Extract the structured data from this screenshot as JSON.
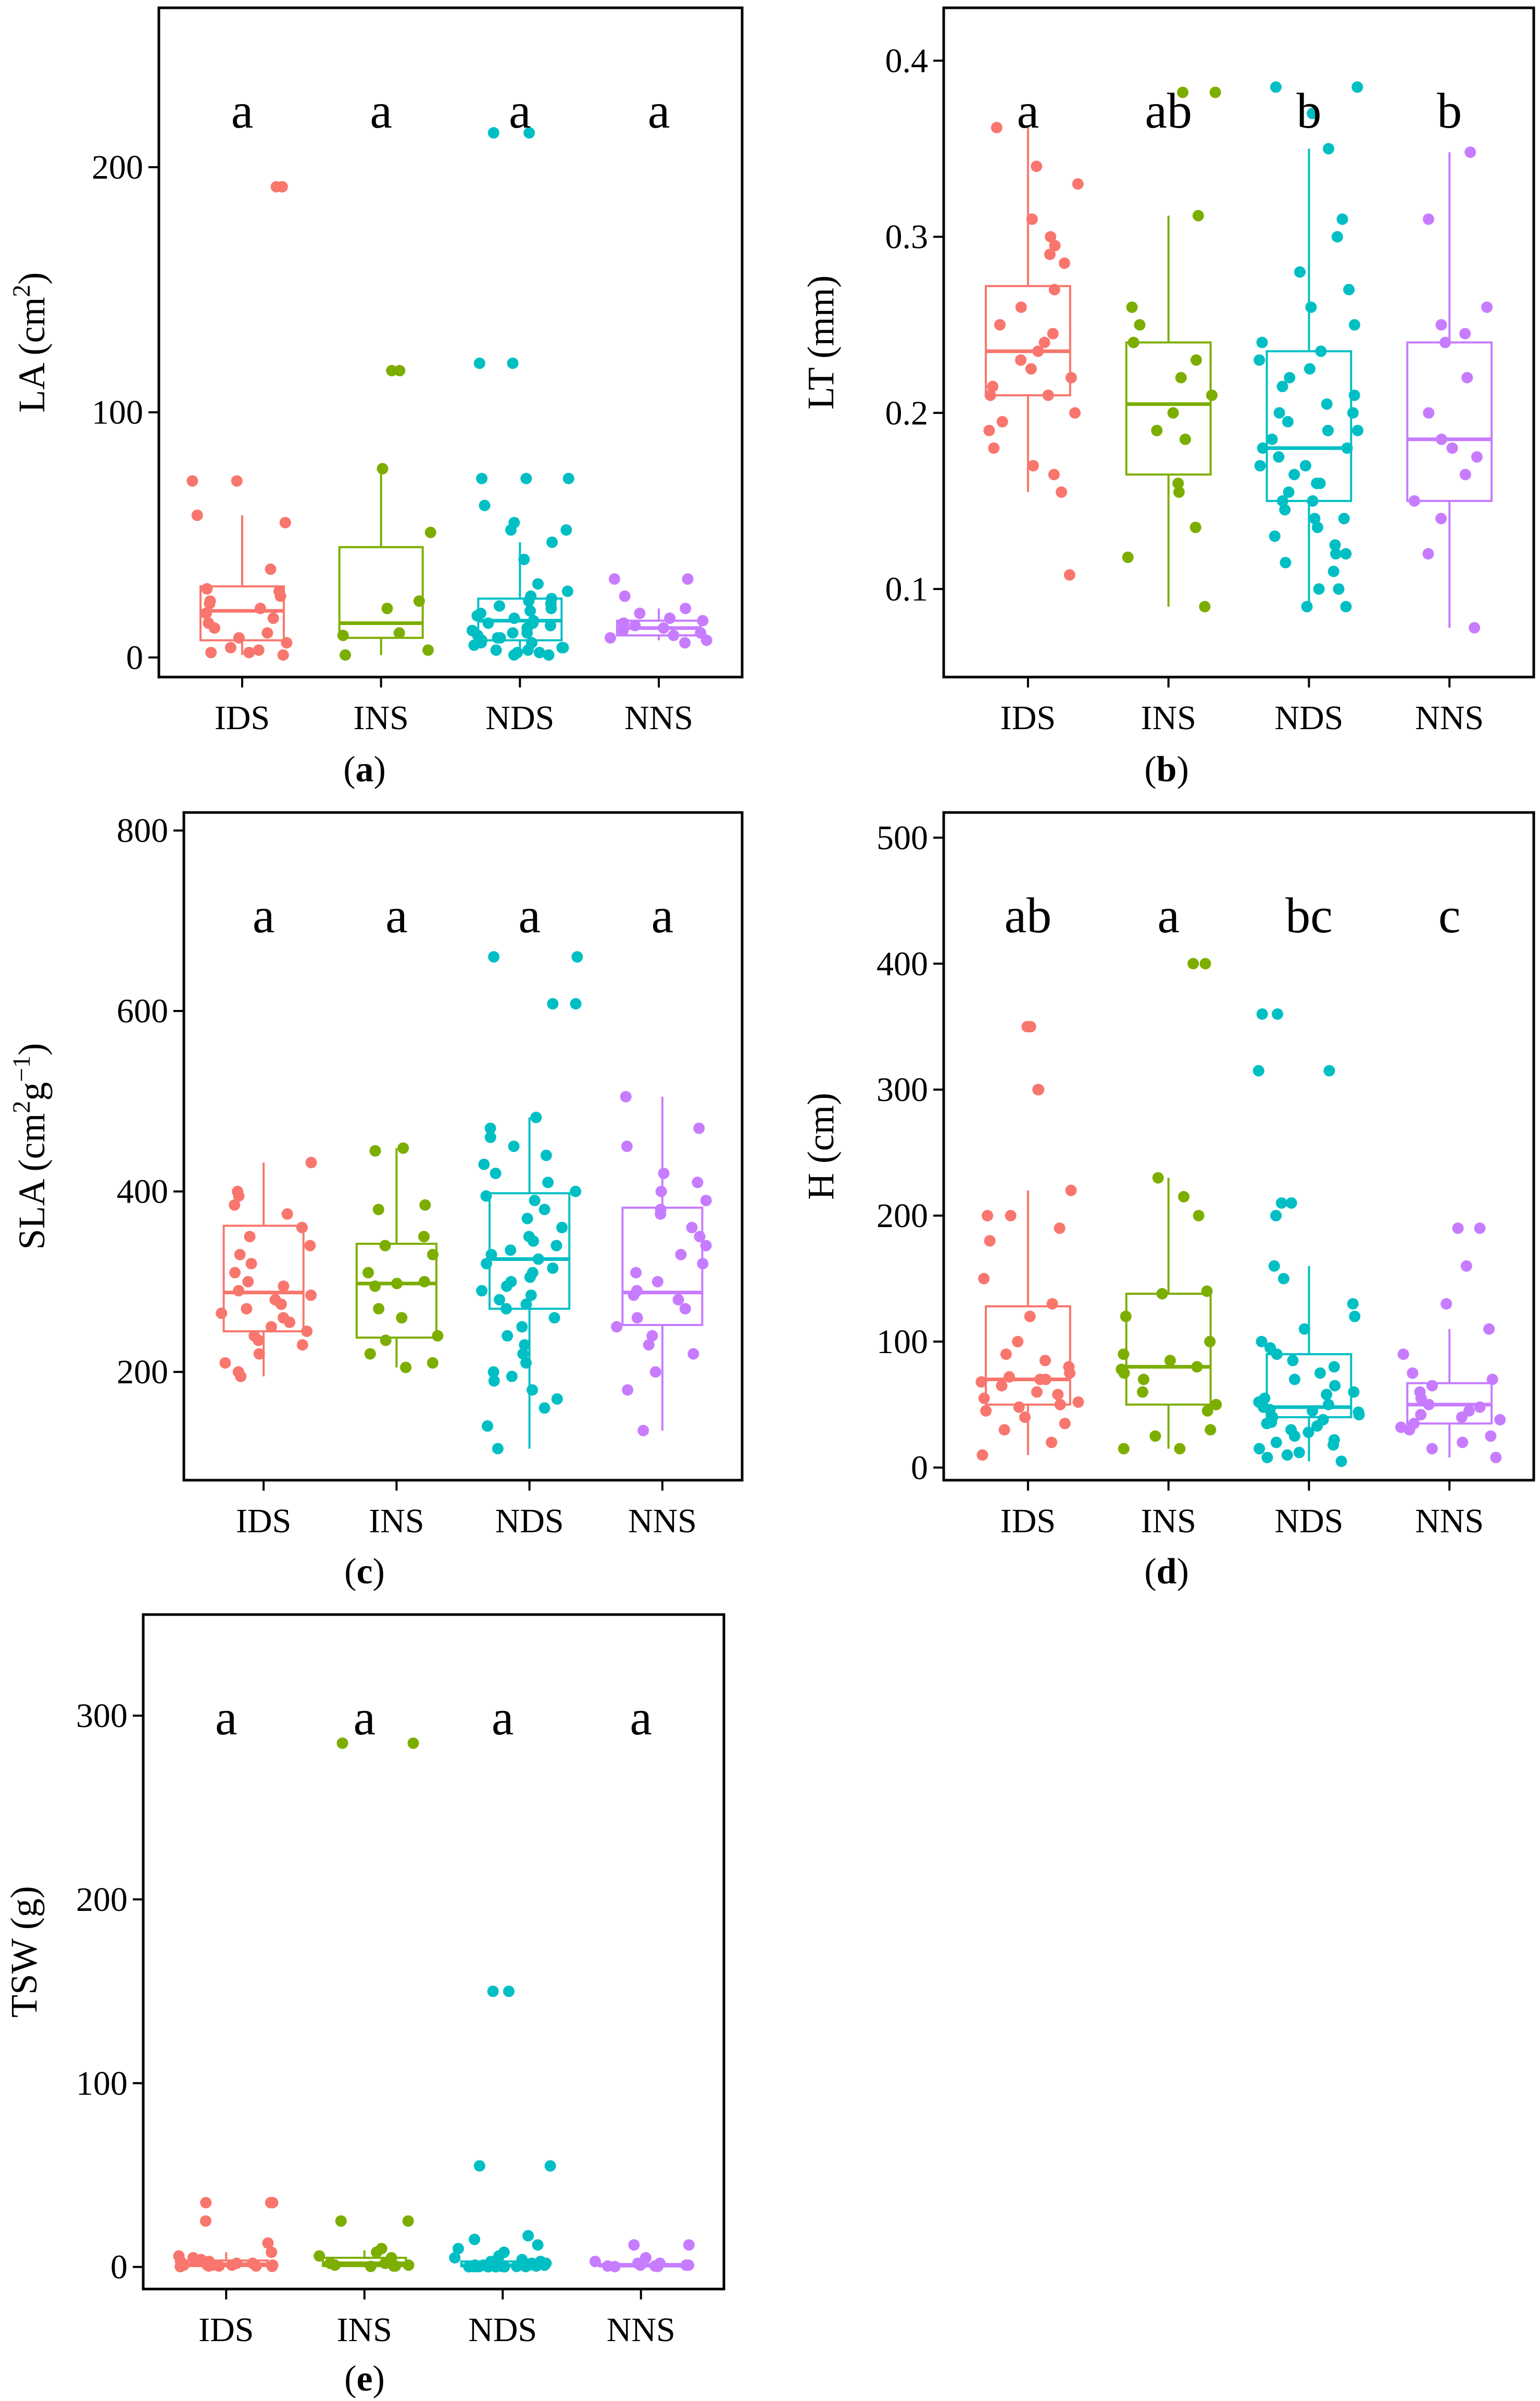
{
  "colors": {
    "IDS": "#F8766D",
    "INS": "#7CAE00",
    "NDS": "#00BFC4",
    "NNS": "#C77CFF"
  },
  "chart_data": [
    {
      "type": "box",
      "panel_label": "a",
      "ylabel": {
        "base": "LA (cm",
        "sup": "2",
        "end": ")"
      },
      "categories": [
        "IDS",
        "INS",
        "NDS",
        "NNS"
      ],
      "ylim": [
        -8,
        265
      ],
      "yticks": [
        0,
        100,
        200
      ],
      "significance": [
        "a",
        "a",
        "a",
        "a"
      ],
      "boxes": [
        {
          "q1": 7,
          "median": 19,
          "q3": 29,
          "min": 1,
          "max": 58
        },
        {
          "q1": 8,
          "median": 14,
          "q3": 45,
          "min": 1,
          "max": 77
        },
        {
          "q1": 7,
          "median": 15,
          "q3": 24,
          "min": 1,
          "max": 47
        },
        {
          "q1": 9,
          "median": 12,
          "q3": 15,
          "min": 7,
          "max": 20
        }
      ],
      "points": [
        [
          192,
          192,
          72,
          72,
          58,
          55,
          36,
          28,
          27,
          25,
          23,
          22,
          20,
          18,
          16,
          14,
          12,
          10,
          8,
          6,
          4,
          3,
          2,
          2,
          1
        ],
        [
          117,
          117,
          77,
          51,
          23,
          20,
          10,
          9,
          3,
          1
        ],
        [
          214,
          214,
          120,
          120,
          73,
          73,
          73,
          62,
          55,
          52,
          52,
          47,
          40,
          30,
          27,
          25,
          24,
          23,
          22,
          21,
          20,
          19,
          18,
          17,
          16,
          15,
          14,
          14,
          13,
          12,
          11,
          10,
          10,
          9,
          8,
          8,
          7,
          6,
          6,
          5,
          4,
          4,
          3,
          3,
          2,
          2,
          1,
          1
        ],
        [
          32,
          32,
          25,
          20,
          18,
          16,
          15,
          14,
          13,
          12,
          11,
          10,
          9,
          8,
          7,
          6
        ]
      ]
    },
    {
      "type": "box",
      "panel_label": "b",
      "ylabel": {
        "base": "LT (mm)",
        "sup": "",
        "end": ""
      },
      "categories": [
        "IDS",
        "INS",
        "NDS",
        "NNS"
      ],
      "ylim": [
        0.05,
        0.43
      ],
      "yticks": [
        0.1,
        0.2,
        0.3,
        0.4
      ],
      "significance": [
        "a",
        "ab",
        "b",
        "b"
      ],
      "boxes": [
        {
          "q1": 0.21,
          "median": 0.235,
          "q3": 0.272,
          "min": 0.155,
          "max": 0.362
        },
        {
          "q1": 0.165,
          "median": 0.205,
          "q3": 0.24,
          "min": 0.09,
          "max": 0.312
        },
        {
          "q1": 0.15,
          "median": 0.18,
          "q3": 0.235,
          "min": 0.09,
          "max": 0.35
        },
        {
          "q1": 0.15,
          "median": 0.185,
          "q3": 0.24,
          "min": 0.078,
          "max": 0.348
        }
      ],
      "points": [
        [
          0.362,
          0.34,
          0.33,
          0.31,
          0.3,
          0.295,
          0.29,
          0.285,
          0.27,
          0.26,
          0.25,
          0.245,
          0.24,
          0.235,
          0.23,
          0.225,
          0.22,
          0.215,
          0.21,
          0.21,
          0.2,
          0.195,
          0.19,
          0.18,
          0.17,
          0.165,
          0.155,
          0.108
        ],
        [
          0.382,
          0.382,
          0.312,
          0.26,
          0.25,
          0.24,
          0.23,
          0.22,
          0.21,
          0.2,
          0.19,
          0.185,
          0.16,
          0.155,
          0.135,
          0.118,
          0.09
        ],
        [
          0.385,
          0.385,
          0.37,
          0.35,
          0.31,
          0.3,
          0.28,
          0.27,
          0.26,
          0.25,
          0.24,
          0.235,
          0.23,
          0.225,
          0.22,
          0.215,
          0.21,
          0.205,
          0.2,
          0.2,
          0.195,
          0.19,
          0.19,
          0.185,
          0.18,
          0.18,
          0.175,
          0.17,
          0.17,
          0.165,
          0.16,
          0.16,
          0.155,
          0.15,
          0.15,
          0.145,
          0.14,
          0.14,
          0.135,
          0.13,
          0.125,
          0.12,
          0.12,
          0.115,
          0.11,
          0.1,
          0.1,
          0.09,
          0.09
        ],
        [
          0.348,
          0.31,
          0.26,
          0.25,
          0.245,
          0.24,
          0.22,
          0.2,
          0.185,
          0.18,
          0.175,
          0.165,
          0.15,
          0.14,
          0.12,
          0.078
        ]
      ]
    },
    {
      "type": "box",
      "panel_label": "c",
      "ylabel": {
        "base": "SLA (cm",
        "sup": "2",
        "mid": "g",
        "sup2": "−1",
        "end": ")"
      },
      "categories": [
        "IDS",
        "INS",
        "NDS",
        "NNS"
      ],
      "ylim": [
        80,
        820
      ],
      "yticks": [
        200,
        400,
        600,
        800
      ],
      "significance": [
        "a",
        "a",
        "a",
        "a"
      ],
      "boxes": [
        {
          "q1": 245,
          "median": 288,
          "q3": 362,
          "min": 195,
          "max": 432
        },
        {
          "q1": 238,
          "median": 298,
          "q3": 342,
          "min": 205,
          "max": 448
        },
        {
          "q1": 270,
          "median": 325,
          "q3": 398,
          "min": 115,
          "max": 482
        },
        {
          "q1": 252,
          "median": 288,
          "q3": 382,
          "min": 135,
          "max": 505
        }
      ],
      "points": [
        [
          432,
          400,
          395,
          385,
          375,
          360,
          350,
          340,
          330,
          320,
          310,
          300,
          295,
          290,
          285,
          280,
          275,
          270,
          265,
          260,
          255,
          250,
          245,
          240,
          235,
          230,
          220,
          210,
          200,
          195
        ],
        [
          448,
          445,
          385,
          380,
          350,
          340,
          330,
          310,
          300,
          298,
          295,
          270,
          260,
          240,
          235,
          220,
          210,
          205
        ],
        [
          660,
          660,
          608,
          608,
          482,
          470,
          460,
          450,
          440,
          430,
          420,
          410,
          400,
          395,
          390,
          380,
          370,
          360,
          350,
          345,
          340,
          335,
          330,
          325,
          320,
          315,
          310,
          305,
          300,
          295,
          290,
          285,
          280,
          275,
          270,
          260,
          250,
          240,
          230,
          220,
          210,
          200,
          195,
          190,
          180,
          170,
          160,
          140,
          115
        ],
        [
          505,
          470,
          450,
          420,
          410,
          400,
          390,
          380,
          375,
          360,
          350,
          340,
          330,
          320,
          310,
          300,
          290,
          285,
          280,
          270,
          260,
          250,
          240,
          230,
          220,
          200,
          180,
          135
        ]
      ]
    },
    {
      "type": "box",
      "panel_label": "d",
      "ylabel": {
        "base": "H (cm)",
        "sup": "",
        "end": ""
      },
      "categories": [
        "IDS",
        "INS",
        "NDS",
        "NNS"
      ],
      "ylim": [
        -10,
        520
      ],
      "yticks": [
        0,
        100,
        200,
        300,
        400,
        500
      ],
      "significance": [
        "ab",
        "a",
        "bc",
        "c"
      ],
      "boxes": [
        {
          "q1": 50,
          "median": 70,
          "q3": 128,
          "min": 10,
          "max": 220
        },
        {
          "q1": 50,
          "median": 80,
          "q3": 138,
          "min": 15,
          "max": 230
        },
        {
          "q1": 40,
          "median": 48,
          "q3": 90,
          "min": 5,
          "max": 160
        },
        {
          "q1": 35,
          "median": 50,
          "q3": 67,
          "min": 8,
          "max": 110
        }
      ],
      "points": [
        [
          350,
          350,
          300,
          300,
          220,
          200,
          200,
          190,
          180,
          150,
          130,
          120,
          100,
          90,
          85,
          80,
          75,
          72,
          70,
          70,
          68,
          65,
          60,
          58,
          55,
          52,
          50,
          48,
          45,
          40,
          35,
          30,
          20,
          10
        ],
        [
          400,
          400,
          230,
          215,
          200,
          140,
          138,
          120,
          100,
          90,
          85,
          80,
          78,
          75,
          70,
          60,
          50,
          45,
          30,
          25,
          15,
          15
        ],
        [
          360,
          360,
          315,
          315,
          210,
          210,
          200,
          160,
          150,
          130,
          120,
          110,
          100,
          95,
          90,
          85,
          80,
          75,
          70,
          65,
          60,
          58,
          55,
          52,
          50,
          48,
          46,
          45,
          44,
          42,
          40,
          38,
          36,
          35,
          33,
          30,
          28,
          25,
          22,
          20,
          18,
          15,
          12,
          10,
          8,
          5
        ],
        [
          190,
          190,
          160,
          130,
          110,
          90,
          75,
          70,
          65,
          60,
          55,
          50,
          48,
          45,
          42,
          40,
          38,
          35,
          32,
          30,
          25,
          20,
          15,
          8
        ]
      ]
    },
    {
      "type": "box",
      "panel_label": "e",
      "ylabel": {
        "base": "TSW (g)",
        "sup": "",
        "end": ""
      },
      "categories": [
        "IDS",
        "INS",
        "NDS",
        "NNS"
      ],
      "ylim": [
        -12,
        355
      ],
      "yticks": [
        0,
        100,
        200,
        300
      ],
      "significance": [
        "a",
        "a",
        "a",
        "a"
      ],
      "boxes": [
        {
          "q1": 0.5,
          "median": 1.5,
          "q3": 3.5,
          "min": 0,
          "max": 8
        },
        {
          "q1": 0.5,
          "median": 2,
          "q3": 5,
          "min": 0,
          "max": 9
        },
        {
          "q1": 0.4,
          "median": 1,
          "q3": 3,
          "min": 0,
          "max": 8
        },
        {
          "q1": 0.3,
          "median": 0.8,
          "q3": 1.6,
          "min": 0,
          "max": 3
        }
      ],
      "points": [
        [
          35,
          35,
          35,
          25,
          13,
          8,
          6,
          5,
          4,
          3,
          3,
          2,
          2,
          2,
          1,
          1,
          1,
          1,
          1,
          0.5,
          0.5,
          0.5,
          0.3,
          0.2
        ],
        [
          285,
          285,
          25,
          25,
          10,
          8,
          6,
          5,
          3,
          2,
          2,
          1,
          1,
          0.5,
          0.5,
          0.3
        ],
        [
          150,
          150,
          55,
          55,
          17,
          15,
          12,
          10,
          8,
          6,
          5,
          4,
          3,
          3,
          2,
          2,
          2,
          1,
          1,
          1,
          1,
          1,
          0.5,
          0.5,
          0.5,
          0.5,
          0.3,
          0.3,
          0.3,
          0.2,
          0.2,
          0.2,
          0.1,
          0.1,
          0.1,
          0.1
        ],
        [
          12,
          12,
          5,
          3,
          2,
          2,
          1,
          1,
          1,
          0.5,
          0.5,
          0.3,
          0.2
        ]
      ]
    }
  ]
}
